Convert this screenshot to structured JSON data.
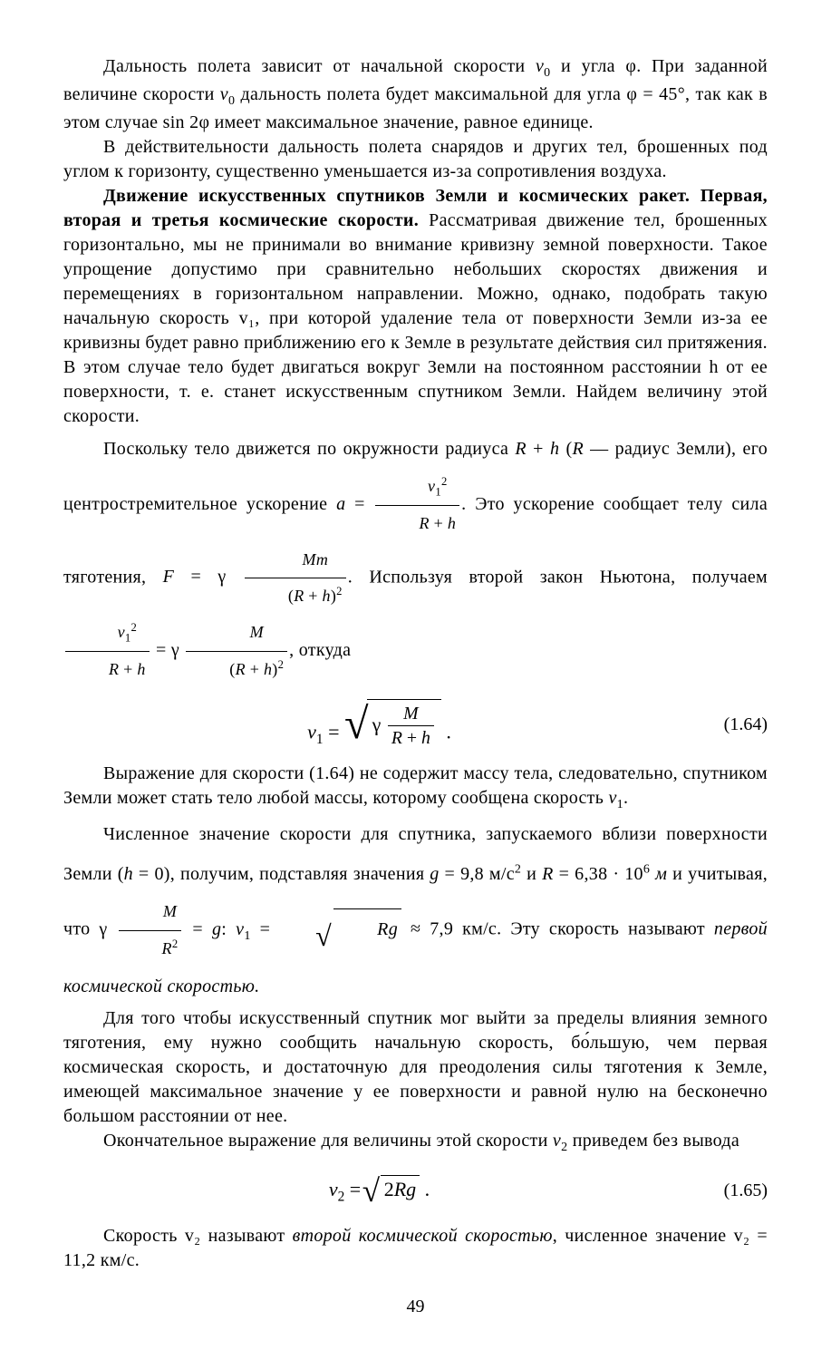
{
  "paragraphs": {
    "p1": "Дальность полета зависит от начальной скорости v₀ и угла φ. При заданной величине скорости v₀ дальность полета будет максимальной для угла φ = 45°, так как в этом случае sin 2φ имеет максимальное значение, равное единице.",
    "p2": "В действительности дальность полета снарядов и других тел, брошенных под углом к горизонту, существенно уменьшается из-за сопротивления воздуха.",
    "p3_lead_bold": "Движение искусственных спутников Земли и космических ракет. Первая, вторая и третья космические скорости.",
    "p3_rest": " Рассматривая движение тел, брошенных горизонтально, мы не принимали во внимание кривизну земной поверхности. Такое упрощение допустимо при сравнительно небольших скоростях движения и перемещениях в горизонтальном направлении. Можно, однако, подобрать такую начальную скорость v₁, при которой удаление тела от поверхности Земли из-за ее кривизны будет равно приближению его к Земле в результате действия сил притяжения. В этом случае тело будет двигаться вокруг Земли на постоянном расстоянии h от ее поверхности, т. е. станет искусственным спутником Земли. Найдем величину этой скорости.",
    "p4_a": "Поскольку тело движется по окружности радиуса ",
    "p4_b": " — радиус Земли), его центростремительное ускорение ",
    "p4_c": ". Это ускорение сообщает телу сила тяготения, ",
    "p4_d": ". Используя второй закон Ньютона, получаем ",
    "p4_e": ", откуда",
    "p5": "Выражение для скорости (1.64) не содержит массу тела, следовательно, спутником Земли может стать тело любой массы, которому сообщена скорость v₁.",
    "p6_a": "Численное значение скорости для спутника, запускаемого вблизи поверхности Земли (h = 0), получим, подставляя значения g = 9,8 м/с² и R = 6,38 · 10⁶ м и учитывая, что ",
    "p6_b": " ≈ 7,9 км/с. Эту скорость называют ",
    "p6_italic": "первой космической скоростью.",
    "p7": "Для того чтобы искусственный спутник мог выйти за пределы влияния земного тяготения, ему нужно сообщить начальную скорость, бо́льшую, чем первая космическая скорость, и достаточную для преодоления силы тяготения к Земле, имеющей максимальное значение у ее поверхности и равной нулю на бесконечно большом расстоянии от нее.",
    "p8": "Окончательное выражение для величины этой скорости v₂ приведем без вывода",
    "p9_a": "Скорость v₂ называют ",
    "p9_italic": "второй космической скоростью",
    "p9_b": ", численное значение v₂ = 11,2 км/с."
  },
  "equations": {
    "eq164_num": "(1.64)",
    "eq165_num": "(1.65)"
  },
  "page_number": "49"
}
